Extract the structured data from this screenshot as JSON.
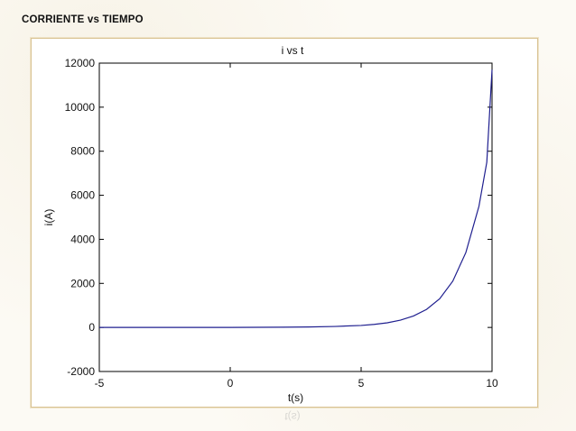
{
  "slide": {
    "title": "CORRIENTE vs TIEMPO"
  },
  "chart_data": {
    "type": "line",
    "title": "i vs t",
    "xlabel": "t(s)",
    "ylabel": "i(A)",
    "xlim": [
      -5,
      10
    ],
    "ylim": [
      -2000,
      12000
    ],
    "xticks": [
      -5,
      0,
      5,
      10
    ],
    "yticks": [
      -2000,
      0,
      2000,
      4000,
      6000,
      8000,
      10000,
      12000
    ],
    "grid": false,
    "series": [
      {
        "color": "#1f1f8f",
        "x": [
          -5,
          -4,
          -3,
          -2,
          -1,
          0,
          1,
          2,
          3,
          4,
          5,
          5.5,
          6,
          6.5,
          7,
          7.5,
          8,
          8.5,
          9,
          9.5,
          9.8,
          10
        ],
        "y": [
          0,
          0,
          0,
          0,
          1,
          2,
          5,
          10,
          20,
          45,
          90,
          140,
          210,
          330,
          520,
          820,
          1300,
          2100,
          3400,
          5500,
          7500,
          11700
        ]
      }
    ]
  }
}
